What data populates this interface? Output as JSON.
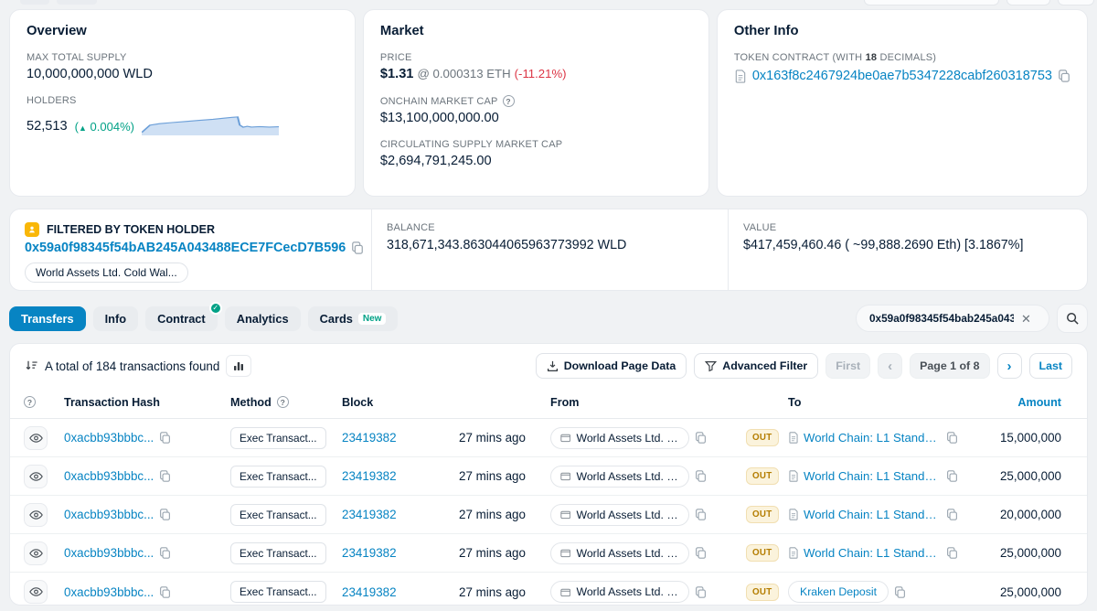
{
  "colors": {
    "brand_blue": "#0784c3",
    "negative_red": "#dc3545",
    "positive_green": "#00a186",
    "out_badge_text": "#b47d00",
    "out_badge_bg": "#fbf3dc"
  },
  "overview_card": {
    "title": "Overview",
    "max_total_supply_label": "MAX TOTAL SUPPLY",
    "max_total_supply": "10,000,000,000 WLD",
    "holders_label": "HOLDERS",
    "holders": "52,513",
    "holders_change": "0.004%",
    "sparkline": [
      [
        0,
        36
      ],
      [
        6,
        26
      ],
      [
        13,
        24
      ],
      [
        22,
        22.5
      ],
      [
        32,
        21
      ],
      [
        42,
        19.5
      ],
      [
        52,
        18
      ],
      [
        60,
        16.5
      ],
      [
        67,
        15.2
      ],
      [
        70,
        14.8
      ],
      [
        71.5,
        26
      ],
      [
        74,
        28.8
      ],
      [
        77,
        27.6
      ],
      [
        80,
        28.6
      ],
      [
        86,
        28.0
      ],
      [
        93,
        28.6
      ],
      [
        100,
        28.2
      ]
    ]
  },
  "market_card": {
    "title": "Market",
    "price_label": "PRICE",
    "price": "$1.31",
    "price_eth": "@ 0.000313 ETH",
    "price_change": "(-11.21%)",
    "onchain_cap_label": "ONCHAIN MARKET CAP",
    "onchain_cap": "$13,100,000,000.00",
    "circulating_cap_label": "CIRCULATING SUPPLY MARKET CAP",
    "circulating_cap": "$2,694,791,245.00"
  },
  "other_info_card": {
    "title": "Other Info",
    "contract_label_pre": "TOKEN CONTRACT (WITH ",
    "contract_decimals": "18",
    "contract_label_post": " DECIMALS)",
    "contract_address": "0x163f8c2467924be0ae7b5347228cabf260318753"
  },
  "filter_bar": {
    "label": "FILTERED BY TOKEN HOLDER",
    "address": "0x59a0f98345f54bAB245A043488ECE7FCecD7B596",
    "holder_tag": "World Assets Ltd. Cold Wal...",
    "balance_label": "BALANCE",
    "balance": "318,671,343.863044065963773992 WLD",
    "value_label": "VALUE",
    "value": "$417,459,460.46 ( ~99,888.2690 Eth) [3.1867%]"
  },
  "tabs": [
    {
      "label": "Transfers"
    },
    {
      "label": "Info"
    },
    {
      "label": "Contract"
    },
    {
      "label": "Analytics"
    },
    {
      "label": "Cards",
      "badge": "New"
    }
  ],
  "search": {
    "value": "0x59a0f98345f54bab245a043..."
  },
  "table": {
    "summary": "A total of 184 transactions found",
    "download_label": "Download Page Data",
    "advanced_filter_label": "Advanced Filter",
    "pagination": {
      "first": "First",
      "prev": "‹",
      "page": "Page 1 of 8",
      "next": "›",
      "last": "Last"
    },
    "headers": {
      "transaction_hash": "Transaction Hash",
      "method": "Method",
      "block": "Block",
      "from": "From",
      "to": "To",
      "amount": "Amount"
    },
    "rows": [
      {
        "hash": "0xacbb93bbbc...",
        "method": "Exec Transact...",
        "block": "23419382",
        "age": "27 mins ago",
        "from": "World Assets Ltd. C...",
        "direction": "OUT",
        "to": "World Chain: L1 Standa...",
        "amount": "15,000,000"
      },
      {
        "hash": "0xacbb93bbbc...",
        "method": "Exec Transact...",
        "block": "23419382",
        "age": "27 mins ago",
        "from": "World Assets Ltd. C...",
        "direction": "OUT",
        "to": "World Chain: L1 Standa...",
        "amount": "25,000,000"
      },
      {
        "hash": "0xacbb93bbbc...",
        "method": "Exec Transact...",
        "block": "23419382",
        "age": "27 mins ago",
        "from": "World Assets Ltd. C...",
        "direction": "OUT",
        "to": "World Chain: L1 Standa...",
        "amount": "20,000,000"
      },
      {
        "hash": "0xacbb93bbbc...",
        "method": "Exec Transact...",
        "block": "23419382",
        "age": "27 mins ago",
        "from": "World Assets Ltd. C...",
        "direction": "OUT",
        "to": "World Chain: L1 Standa...",
        "amount": "25,000,000"
      },
      {
        "hash": "0xacbb93bbbc...",
        "method": "Exec Transact...",
        "block": "23419382",
        "age": "27 mins ago",
        "from": "World Assets Ltd. C...",
        "direction": "OUT",
        "to": "Kraken Deposit",
        "amount": "25,000,000"
      }
    ]
  }
}
